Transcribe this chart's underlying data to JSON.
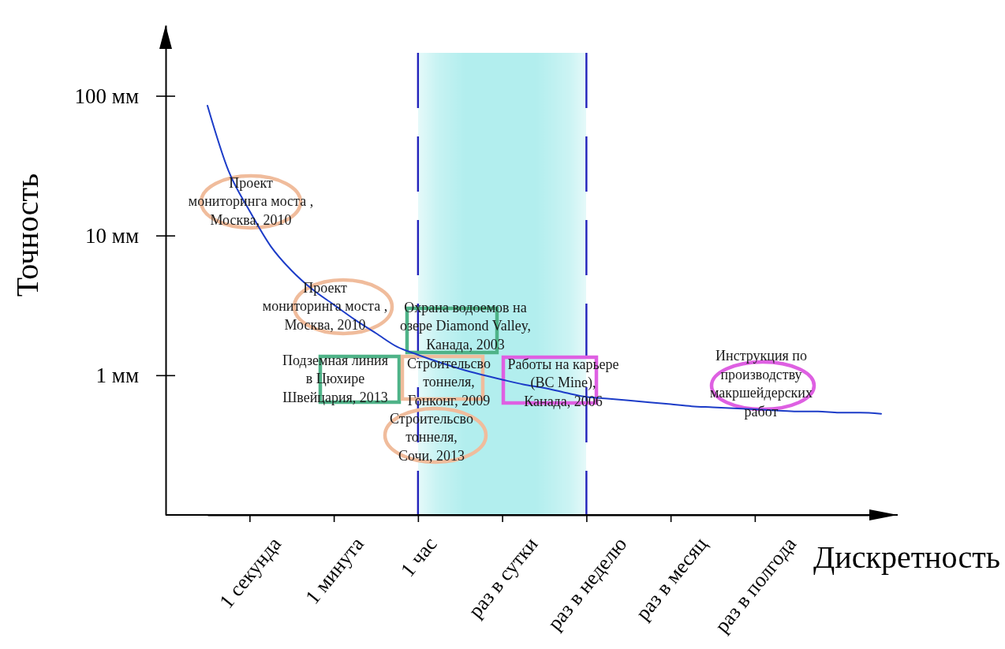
{
  "chart_data": {
    "type": "line",
    "xlabel": "Дискретность",
    "ylabel": "Точность",
    "log": "y",
    "categories": [
      null,
      null,
      "1 секунда",
      null,
      null,
      null,
      "1 минута",
      null,
      null,
      null,
      "1 час",
      null,
      null,
      null,
      "раз в сутки",
      null,
      null,
      null,
      "раз в неделю",
      null,
      null,
      null,
      "раз в месяц",
      null,
      null,
      null,
      "раз в полгода",
      null,
      null,
      null,
      null,
      null,
      null
    ],
    "ylim": [
      0.1,
      320
    ],
    "yticks": [
      {
        "value": 1,
        "label": "1 мм"
      },
      {
        "value": 10,
        "label": "10 мм"
      },
      {
        "value": 100,
        "label": "100 мм"
      }
    ],
    "series": [
      {
        "color": "#1c3cc8",
        "values": [
          85,
          29,
          15,
          8.4,
          5.6,
          4.1,
          3.2,
          2.5,
          2.0,
          1.6,
          1.4,
          1.24,
          1.11,
          1.01,
          0.93,
          0.86,
          0.81,
          0.75,
          0.7,
          0.68,
          0.66,
          0.64,
          0.62,
          0.6,
          0.59,
          0.58,
          0.57,
          0.56,
          0.55,
          0.55,
          0.54,
          0.54,
          0.53
        ]
      }
    ],
    "bands": [
      {
        "axis": "x",
        "from": "1 час",
        "to": "раз в неделю",
        "color": "#b2eeee"
      }
    ],
    "ref_lines": [
      {
        "axis": "x",
        "value": "1 час",
        "color": "#2222bb",
        "line_style": "dashed"
      },
      {
        "axis": "x",
        "value": "раз в неделю",
        "color": "#2222bb",
        "line_style": "dashed"
      }
    ],
    "annotations": [
      "Проект\nмониторинга моста ,\nМосква, 2010",
      "Проект\nмониторинга моста ,\nМосква, 2010",
      "Охрана водоемов на\nозере Diamond Valley,\nКанада, 2003",
      "Подземная линия\nв Цюхире\nШвейцария, 2013",
      "Строительсво\nтоннеля,\nГонконг, 2009",
      "Строительсво\nтоннеля,\nСочи, 2013",
      "Работы на карьере\n(BC Mine),\nКанада, 2006",
      "Инструкция по\nпроизводству\nмакршейдерских\nработ"
    ]
  }
}
